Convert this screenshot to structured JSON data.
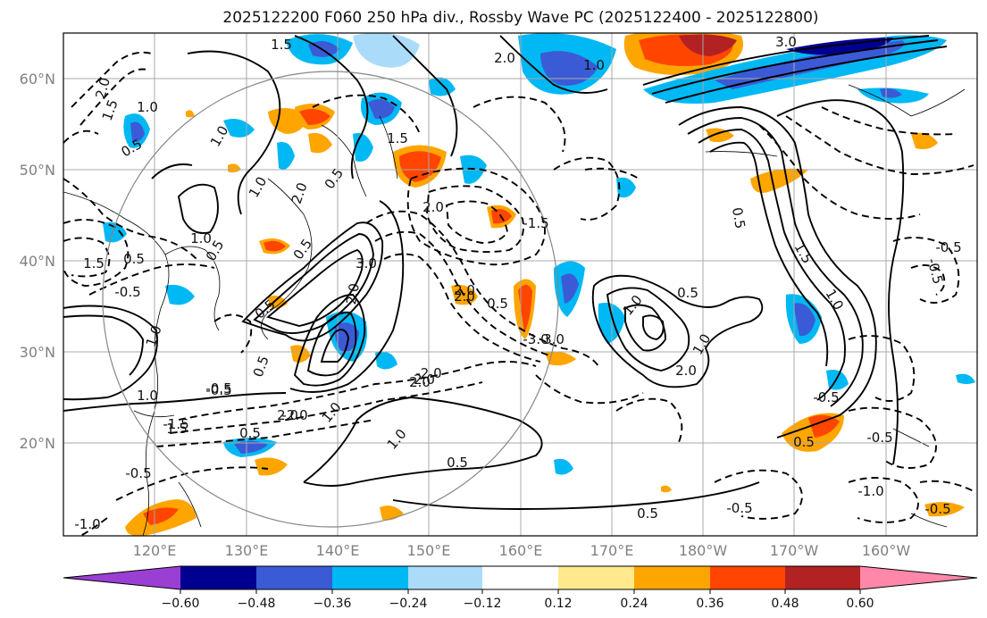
{
  "title": "2025122200 F060 250 hPa div., Rossby Wave PC (2025122400 - 2025122800)",
  "lat_labels": [
    "60°N",
    "50°N",
    "40°N",
    "30°N",
    "20°N"
  ],
  "lon_labels": [
    "120°E",
    "130°E",
    "140°E",
    "150°E",
    "160°E",
    "170°E",
    "180°W",
    "170°W",
    "160°W"
  ],
  "colorbar": {
    "colors": [
      "#9b3fd4",
      "#000090",
      "#3b5bd6",
      "#00b8f4",
      "#aadcfa",
      "#ffffff",
      "#ffe98c",
      "#ffa500",
      "#ff4500",
      "#b22222",
      "#ff88aa"
    ],
    "ticks": [
      "−0.60",
      "−0.48",
      "−0.36",
      "−0.24",
      "−0.12",
      "0.12",
      "0.24",
      "0.36",
      "0.48",
      "0.60"
    ]
  },
  "contour_labels": [
    "1.5",
    "2.0",
    "1.0",
    "0.5",
    "1.5",
    "2.0",
    "1.5",
    "1.0",
    "2.0",
    "0.5",
    "-1.5",
    "0.5",
    "2.0",
    "0.5",
    "0.5",
    "1.0",
    "2.0",
    "3.0",
    "1.0",
    "2.0",
    "2.0",
    "-0.5",
    "1.5",
    "2.0",
    "1.0",
    "0.5",
    "0.5",
    "0.5",
    "1.0",
    "1.0",
    "1.0",
    "0.5",
    "1.5",
    "0.5",
    "-0.5",
    "1.0",
    "0.5",
    "0.5",
    "2.0",
    "3.0",
    "1.0",
    "1.5",
    "-2.0",
    "-2.0",
    "-0.5",
    "-1.5",
    "-0.5",
    "-1.0",
    "0.5",
    "-1.0",
    "-0.5",
    "-0.5",
    "-0.5",
    "-0.5",
    "-0.5",
    "3.0",
    "-3.0",
    "2.0",
    "2.0",
    "1.0",
    "1.0",
    "-0.5",
    "0.5"
  ]
}
